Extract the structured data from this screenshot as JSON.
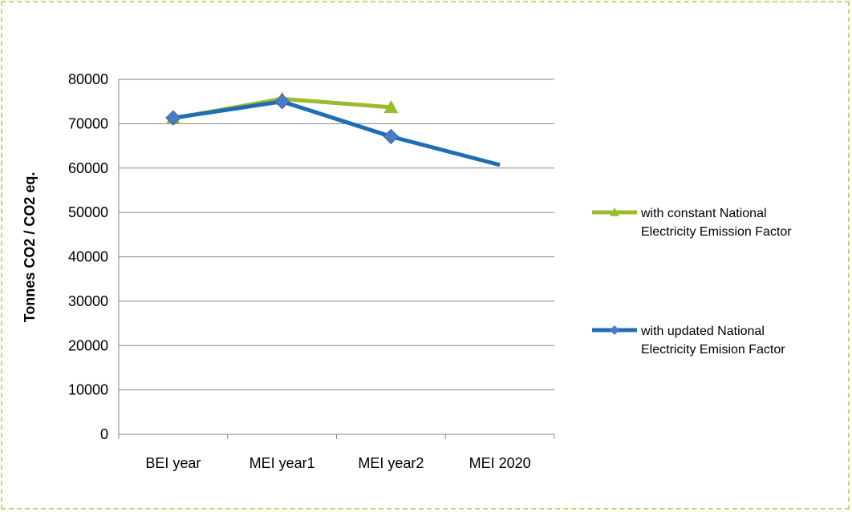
{
  "chart_data": {
    "type": "line",
    "title": "",
    "xlabel": "",
    "ylabel": "Tonnes CO2 / CO2 eq.",
    "categories": [
      "BEI year",
      "MEI year1",
      "MEI year2",
      "MEI 2020"
    ],
    "ylim": [
      0,
      80000
    ],
    "yticks": [
      0,
      10000,
      20000,
      30000,
      40000,
      50000,
      60000,
      70000,
      80000
    ],
    "grid": true,
    "legend_position": "right",
    "series": [
      {
        "name": "with constant National Electricity Emission Factor",
        "legend_lines": [
          "with constant National",
          "Electricity Emission Factor"
        ],
        "values": [
          71200,
          75600,
          73700,
          null
        ],
        "color": "#9bbb2f",
        "marker": "triangle"
      },
      {
        "name": "with updated National Electricity Emision Factor",
        "legend_lines": [
          "with updated National",
          "Electricity Emision Factor"
        ],
        "values": [
          71300,
          75000,
          67100,
          60700
        ],
        "color": "#1f6db5",
        "marker": "diamond",
        "marker_color": "#4a7cc4"
      }
    ]
  }
}
